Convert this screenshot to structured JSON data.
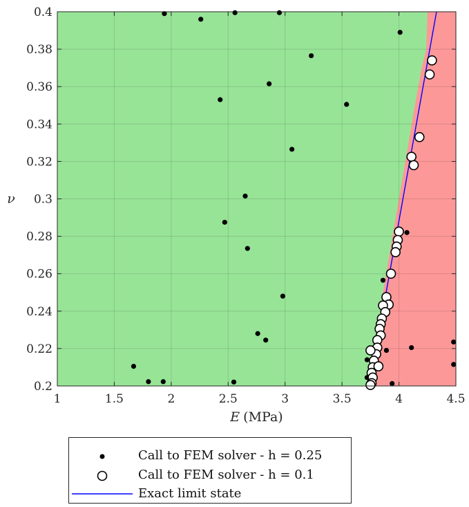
{
  "chart_data": {
    "type": "scatter",
    "xlabel_italic": "E",
    "xlabel_units": "(MPa)",
    "ylabel": "ν",
    "xlim": [
      1,
      4.5
    ],
    "ylim": [
      0.2,
      0.4
    ],
    "xticks": [
      1,
      1.5,
      2,
      2.5,
      3,
      3.5,
      4,
      4.5
    ],
    "xtick_labels": [
      "1",
      "1.5",
      "2",
      "2.5",
      "3",
      "3.5",
      "4",
      "4.5"
    ],
    "yticks": [
      0.2,
      0.22,
      0.24,
      0.26,
      0.28,
      0.3,
      0.32,
      0.34,
      0.36,
      0.38,
      0.4
    ],
    "ytick_labels": [
      "0.2",
      "0.22",
      "0.24",
      "0.26",
      "0.28",
      "0.3",
      "0.32",
      "0.34",
      "0.36",
      "0.38",
      "0.4"
    ],
    "grid": true,
    "legend_placement": "below plot",
    "colors": {
      "safe_region": "#98e497",
      "failure_region": "#fd9898",
      "limit_line": "#0000ff",
      "coarse_points": "#000000",
      "fine_points_fill": "#ffffff",
      "fine_points_edge": "#000000"
    },
    "regions": {
      "boundary": [
        [
          3.74,
          0.2
        ],
        [
          3.86,
          0.25
        ],
        [
          4.0,
          0.3
        ],
        [
          4.14,
          0.35
        ],
        [
          4.2,
          0.37
        ],
        [
          4.24,
          0.38
        ],
        [
          4.25,
          0.4
        ]
      ]
    },
    "series": [
      {
        "name": "Call to FEM solver - h = 0.25",
        "marker": "dot",
        "points": [
          [
            1.94,
            0.399
          ],
          [
            2.56,
            0.3995
          ],
          [
            2.95,
            0.3995
          ],
          [
            2.26,
            0.396
          ],
          [
            4.01,
            0.389
          ],
          [
            3.23,
            0.3765
          ],
          [
            2.86,
            0.3615
          ],
          [
            2.43,
            0.353
          ],
          [
            3.54,
            0.3505
          ],
          [
            3.06,
            0.3265
          ],
          [
            2.65,
            0.3015
          ],
          [
            2.47,
            0.2875
          ],
          [
            4.07,
            0.282
          ],
          [
            2.67,
            0.2735
          ],
          [
            3.86,
            0.2565
          ],
          [
            2.98,
            0.248
          ],
          [
            2.76,
            0.228
          ],
          [
            2.83,
            0.2245
          ],
          [
            4.48,
            0.2235
          ],
          [
            4.11,
            0.2205
          ],
          [
            3.89,
            0.219
          ],
          [
            3.72,
            0.214
          ],
          [
            4.48,
            0.2115
          ],
          [
            1.67,
            0.2105
          ],
          [
            1.8,
            0.2023
          ],
          [
            1.93,
            0.2023
          ],
          [
            2.55,
            0.2021
          ],
          [
            3.72,
            0.2045
          ],
          [
            3.94,
            0.2013
          ]
        ]
      },
      {
        "name": "Call to FEM solver - h = 0.1",
        "marker": "circle",
        "points": [
          [
            4.29,
            0.374
          ],
          [
            4.27,
            0.3665
          ],
          [
            4.18,
            0.333
          ],
          [
            4.11,
            0.3225
          ],
          [
            4.13,
            0.318
          ],
          [
            4.0,
            0.2825
          ],
          [
            3.99,
            0.278
          ],
          [
            3.98,
            0.2745
          ],
          [
            3.97,
            0.2715
          ],
          [
            3.93,
            0.26
          ],
          [
            3.89,
            0.2475
          ],
          [
            3.91,
            0.2435
          ],
          [
            3.86,
            0.243
          ],
          [
            3.88,
            0.2395
          ],
          [
            3.85,
            0.236
          ],
          [
            3.84,
            0.233
          ],
          [
            3.83,
            0.2305
          ],
          [
            3.84,
            0.227
          ],
          [
            3.81,
            0.2245
          ],
          [
            3.81,
            0.2205
          ],
          [
            3.8,
            0.217
          ],
          [
            3.78,
            0.2135
          ],
          [
            3.77,
            0.21
          ],
          [
            3.76,
            0.207
          ],
          [
            3.77,
            0.2045
          ],
          [
            3.76,
            0.2015
          ],
          [
            3.75,
            0.2005
          ],
          [
            3.75,
            0.219
          ],
          [
            3.82,
            0.2105
          ]
        ]
      },
      {
        "name": "Exact limit state",
        "marker": "line",
        "points": [
          [
            3.74,
            0.2
          ],
          [
            4.33,
            0.4
          ]
        ]
      }
    ]
  },
  "legend": {
    "items": [
      "Call to FEM solver - h = 0.25",
      "Call to FEM solver - h = 0.1",
      "Exact limit state"
    ]
  }
}
